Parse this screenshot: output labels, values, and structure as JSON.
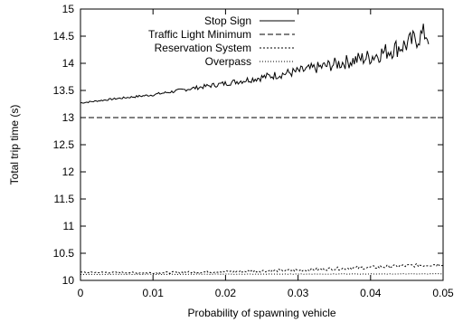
{
  "chart_data": {
    "type": "line",
    "title": "",
    "xlabel": "Probability of spawning vehicle",
    "ylabel": "Total trip time (s)",
    "xlim": [
      0,
      0.05
    ],
    "ylim": [
      10,
      15
    ],
    "xticks": [
      "0",
      "0.01",
      "0.02",
      "0.03",
      "0.04",
      "0.05"
    ],
    "yticks": [
      "10",
      "10.5",
      "11",
      "11.5",
      "12",
      "12.5",
      "13",
      "13.5",
      "14",
      "14.5",
      "15"
    ],
    "xtick_values": [
      0,
      0.01,
      0.02,
      0.03,
      0.04,
      0.05
    ],
    "ytick_values": [
      10,
      10.5,
      11,
      11.5,
      12,
      12.5,
      13,
      13.5,
      14,
      14.5,
      15
    ],
    "grid": false,
    "legend_position": "top-right",
    "series": [
      {
        "name": "Stop Sign",
        "style": "solid",
        "x": [
          0.0,
          0.005,
          0.01,
          0.015,
          0.02,
          0.025,
          0.03,
          0.035,
          0.04,
          0.045,
          0.0475,
          0.048
        ],
        "values": [
          13.27,
          13.35,
          13.42,
          13.53,
          13.63,
          13.74,
          13.85,
          13.98,
          14.12,
          14.35,
          14.55,
          14.5
        ]
      },
      {
        "name": "Traffic Light Minimum",
        "style": "dashed",
        "x": [
          0.0,
          0.05
        ],
        "values": [
          13.0,
          13.0
        ]
      },
      {
        "name": "Reservation System",
        "style": "dotted-fine",
        "x": [
          0.0,
          0.01,
          0.02,
          0.03,
          0.04,
          0.045,
          0.05
        ],
        "values": [
          10.15,
          10.14,
          10.16,
          10.19,
          10.24,
          10.27,
          10.3
        ]
      },
      {
        "name": "Overpass",
        "style": "dotted",
        "x": [
          0.0,
          0.05
        ],
        "values": [
          10.11,
          10.12
        ]
      }
    ]
  }
}
